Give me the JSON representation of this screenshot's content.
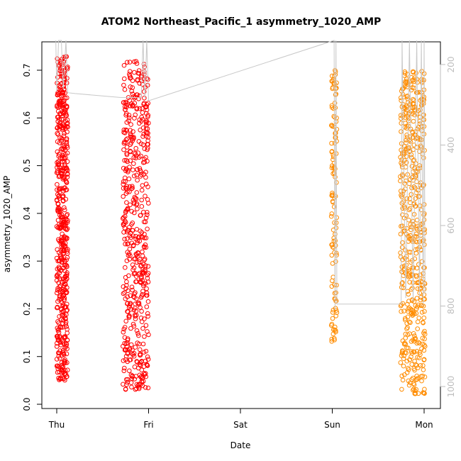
{
  "chart_data": {
    "type": "scatter",
    "title": "ATOM2 Northeast_Pacific_1 asymmetry_1020_AMP",
    "xlabel": "Date",
    "ylabel": "asymmetry_1020_AMP",
    "x_ticks": [
      "Thu",
      "Fri",
      "Sat",
      "Sun",
      "Mon"
    ],
    "y_ticks": [
      "0.0",
      "0.1",
      "0.2",
      "0.3",
      "0.4",
      "0.5",
      "0.6",
      "0.7"
    ],
    "ylim": [
      0,
      0.76
    ],
    "y2_ticks": [
      "200",
      "400",
      "600",
      "800",
      "1000"
    ],
    "y2lim": [
      1050,
      140
    ],
    "y2_inverted": true,
    "grid": false,
    "point_style": "open circle",
    "colors": {
      "series_1": "#ff0000",
      "series_2": "#ff8c00",
      "altitude_trace": "#c8c8c8"
    },
    "series": [
      {
        "color": "#ff0000",
        "clusters": [
          {
            "day_start": 0.0,
            "day_end": 0.12,
            "y_min": 0.05,
            "y_max": 0.73,
            "dense": true
          },
          {
            "day_start": 0.72,
            "day_end": 1.0,
            "y_min": 0.03,
            "y_max": 0.72,
            "dense": true
          }
        ]
      },
      {
        "color": "#ff8c00",
        "clusters": [
          {
            "day_start": 2.99,
            "day_end": 3.05,
            "y_min": 0.13,
            "y_max": 0.7,
            "dense": false
          },
          {
            "day_start": 3.74,
            "day_end": 4.01,
            "y_min": 0.02,
            "y_max": 0.7,
            "dense": true
          }
        ]
      }
    ],
    "altitude_trace": [
      {
        "day": -0.01,
        "alt": 140
      },
      {
        "day": 0.0,
        "alt": 268
      },
      {
        "day": 0.02,
        "alt": 140
      },
      {
        "day": 0.05,
        "alt": 140
      },
      {
        "day": 0.07,
        "alt": 262
      },
      {
        "day": 0.1,
        "alt": 140
      },
      {
        "day": 0.12,
        "alt": 270
      },
      {
        "day": 0.2,
        "alt": 272
      },
      {
        "day": 0.7,
        "alt": 282
      },
      {
        "day": 0.92,
        "alt": 282
      },
      {
        "day": 0.94,
        "alt": 140
      },
      {
        "day": 0.96,
        "alt": 285
      },
      {
        "day": 0.98,
        "alt": 140
      },
      {
        "day": 1.0,
        "alt": 290
      },
      {
        "day": 3.02,
        "alt": 140
      },
      {
        "day": 3.03,
        "alt": 810
      },
      {
        "day": 3.04,
        "alt": 140
      },
      {
        "day": 3.05,
        "alt": 795
      },
      {
        "day": 3.75,
        "alt": 795
      },
      {
        "day": 3.76,
        "alt": 140
      },
      {
        "day": 3.8,
        "alt": 780
      },
      {
        "day": 3.84,
        "alt": 140
      },
      {
        "day": 3.88,
        "alt": 790
      },
      {
        "day": 3.92,
        "alt": 140
      },
      {
        "day": 3.95,
        "alt": 780
      },
      {
        "day": 3.97,
        "alt": 140
      },
      {
        "day": 3.99,
        "alt": 800
      },
      {
        "day": 4.0,
        "alt": 140
      },
      {
        "day": 4.01,
        "alt": 770
      }
    ]
  }
}
